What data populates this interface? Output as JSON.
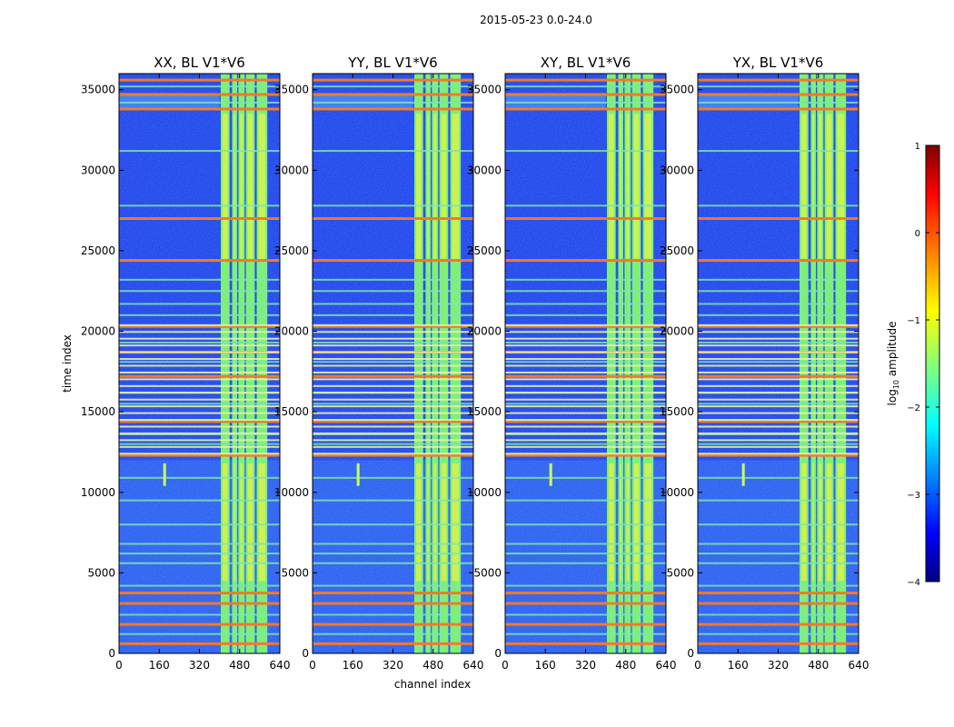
{
  "suptitle": "2015-05-23 0.0-24.0",
  "chart_data": {
    "type": "heatmap",
    "xlabel": "channel index",
    "ylabel": "time index",
    "xlim": [
      0,
      640
    ],
    "ylim": [
      0,
      36000
    ],
    "xticks": [
      0,
      160,
      320,
      480,
      640
    ],
    "yticks": [
      0,
      5000,
      10000,
      15000,
      20000,
      25000,
      30000,
      35000
    ],
    "panels": [
      {
        "title": "XX, BL V1*V6"
      },
      {
        "title": "YY, BL V1*V6"
      },
      {
        "title": "XY, BL V1*V6"
      },
      {
        "title": "YX, BL V1*V6"
      }
    ],
    "colorbar": {
      "label": "log10 amplitude",
      "min": -4,
      "max": 1,
      "ticks": [
        1,
        0,
        -1,
        -2,
        -3,
        -4
      ],
      "colormap": "jet"
    },
    "approx_features": {
      "note": "approximate: background ~ -3 log10 amplitude; bright bands in channels ~400-600 (~ -1 to 0); many horizontal flagged lines",
      "bright_channel_bands": [
        [
          405,
          440
        ],
        [
          450,
          470
        ],
        [
          475,
          500
        ],
        [
          505,
          540
        ],
        [
          548,
          590
        ]
      ],
      "hot_rows": [
        600,
        1800,
        3100,
        3750,
        12300,
        14400,
        17200,
        18700,
        20300,
        24400,
        27000,
        33800,
        34700,
        35600
      ],
      "warm_rows": [
        1200,
        2400,
        4200,
        5600,
        6200,
        6800,
        8000,
        9500,
        10900,
        13000,
        13600,
        15500,
        16200,
        18100,
        19300,
        21000,
        21700,
        22500,
        23200,
        27800,
        31200,
        34200,
        35200
      ]
    }
  }
}
